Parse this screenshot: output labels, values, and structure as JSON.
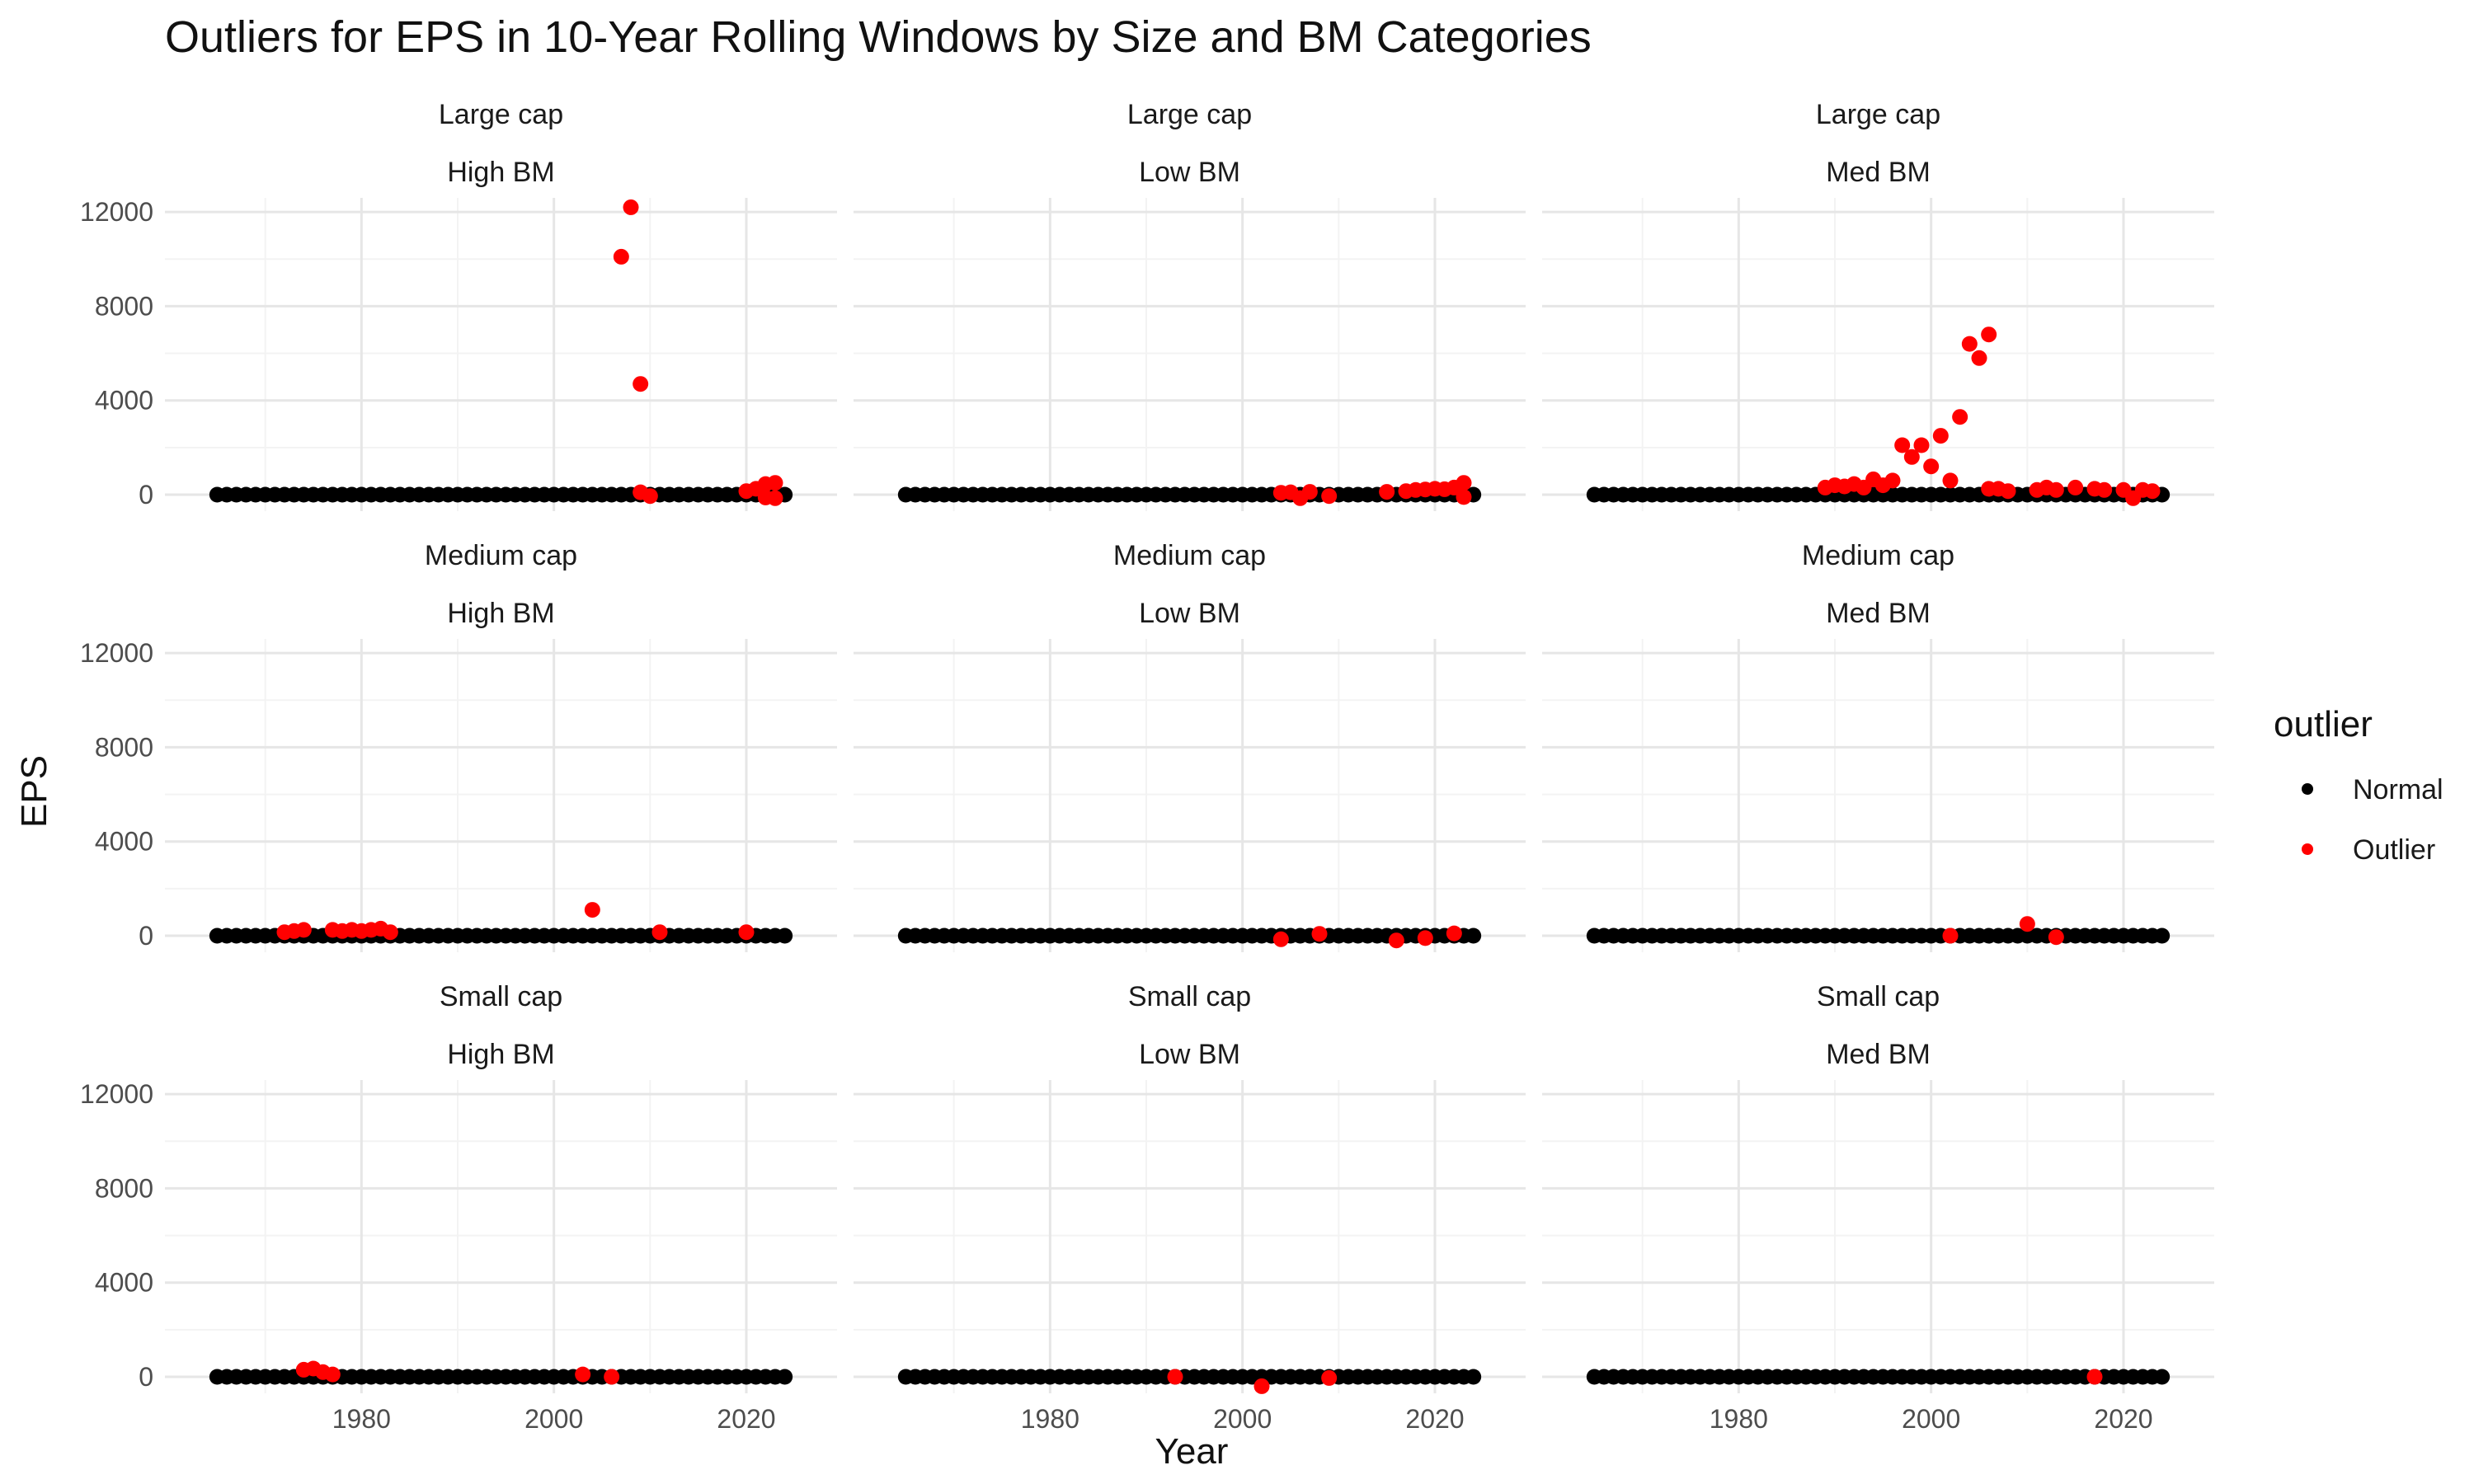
{
  "chart_data": {
    "type": "scatter",
    "title": "Outliers for EPS in 10-Year Rolling Windows by Size and BM Categories",
    "xlabel": "Year",
    "ylabel": "EPS",
    "xlim": [
      1963,
      2026
    ],
    "ylim": [
      -700,
      12600
    ],
    "x_ticks": [
      1980,
      2000,
      2020
    ],
    "x_tick_labels": [
      "1980",
      "2000",
      "2020"
    ],
    "y_ticks": [
      0,
      4000,
      8000,
      12000
    ],
    "y_tick_labels": [
      "0",
      "4000",
      "8000",
      "12000"
    ],
    "grid": true,
    "legend": {
      "title": "outlier",
      "position": "right",
      "entries": [
        {
          "label": "Normal",
          "color": "#000000"
        },
        {
          "label": "Outlier",
          "color": "#ff0000"
        }
      ]
    },
    "baseline": {
      "years_from": 1965,
      "years_to": 2024,
      "value": 0
    },
    "panels": [
      {
        "size": "Large cap",
        "bm": "High BM",
        "outliers": [
          [
            2007,
            10100
          ],
          [
            2008,
            12200
          ],
          [
            2009,
            4700
          ],
          [
            2009,
            100
          ],
          [
            2010,
            -60
          ],
          [
            2020,
            150
          ],
          [
            2021,
            250
          ],
          [
            2022,
            450
          ],
          [
            2022,
            -120
          ],
          [
            2023,
            500
          ],
          [
            2023,
            -150
          ]
        ]
      },
      {
        "size": "Large cap",
        "bm": "Low BM",
        "outliers": [
          [
            2004,
            80
          ],
          [
            2005,
            100
          ],
          [
            2006,
            -150
          ],
          [
            2007,
            120
          ],
          [
            2009,
            -60
          ],
          [
            2015,
            120
          ],
          [
            2017,
            150
          ],
          [
            2018,
            200
          ],
          [
            2019,
            220
          ],
          [
            2020,
            250
          ],
          [
            2021,
            230
          ],
          [
            2022,
            300
          ],
          [
            2023,
            500
          ],
          [
            2023,
            -100
          ]
        ]
      },
      {
        "size": "Large cap",
        "bm": "Med BM",
        "outliers": [
          [
            1989,
            300
          ],
          [
            1990,
            400
          ],
          [
            1991,
            350
          ],
          [
            1992,
            450
          ],
          [
            1993,
            300
          ],
          [
            1994,
            650
          ],
          [
            1995,
            400
          ],
          [
            1996,
            600
          ],
          [
            1997,
            2100
          ],
          [
            1998,
            1600
          ],
          [
            1999,
            2100
          ],
          [
            2000,
            1200
          ],
          [
            2001,
            2500
          ],
          [
            2002,
            600
          ],
          [
            2003,
            3300
          ],
          [
            2004,
            6400
          ],
          [
            2005,
            5800
          ],
          [
            2006,
            6800
          ],
          [
            2006,
            250
          ],
          [
            2007,
            250
          ],
          [
            2008,
            150
          ],
          [
            2011,
            200
          ],
          [
            2012,
            300
          ],
          [
            2013,
            200
          ],
          [
            2015,
            300
          ],
          [
            2017,
            250
          ],
          [
            2018,
            200
          ],
          [
            2020,
            200
          ],
          [
            2021,
            -150
          ],
          [
            2022,
            200
          ],
          [
            2023,
            150
          ]
        ]
      },
      {
        "size": "Medium cap",
        "bm": "High BM",
        "outliers": [
          [
            1972,
            150
          ],
          [
            1973,
            200
          ],
          [
            1974,
            250
          ],
          [
            1977,
            250
          ],
          [
            1978,
            200
          ],
          [
            1979,
            250
          ],
          [
            1980,
            200
          ],
          [
            1981,
            250
          ],
          [
            1982,
            300
          ],
          [
            1983,
            150
          ],
          [
            2004,
            1100
          ],
          [
            2011,
            150
          ],
          [
            2020,
            150
          ]
        ]
      },
      {
        "size": "Medium cap",
        "bm": "Low BM",
        "outliers": [
          [
            2004,
            -150
          ],
          [
            2008,
            80
          ],
          [
            2016,
            -200
          ],
          [
            2019,
            -100
          ],
          [
            2022,
            100
          ]
        ]
      },
      {
        "size": "Medium cap",
        "bm": "Med BM",
        "outliers": [
          [
            2002,
            0
          ],
          [
            2010,
            500
          ],
          [
            2013,
            -60
          ]
        ]
      },
      {
        "size": "Small cap",
        "bm": "High BM",
        "outliers": [
          [
            1974,
            300
          ],
          [
            1975,
            350
          ],
          [
            1976,
            200
          ],
          [
            1977,
            100
          ],
          [
            2003,
            100
          ],
          [
            2006,
            0
          ]
        ]
      },
      {
        "size": "Small cap",
        "bm": "Low BM",
        "outliers": [
          [
            1993,
            0
          ],
          [
            2002,
            -400
          ],
          [
            2009,
            -50
          ]
        ]
      },
      {
        "size": "Small cap",
        "bm": "Med BM",
        "outliers": [
          [
            2017,
            0
          ]
        ]
      }
    ]
  }
}
